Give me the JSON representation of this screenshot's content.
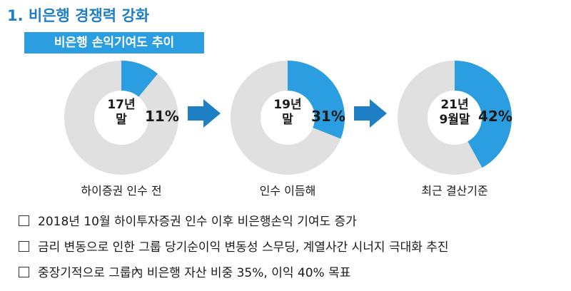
{
  "title": "1. 비은행 경쟁력 강화",
  "subtitle": "비은행 손익기여도 추이",
  "colors": {
    "accent": "#2a9ee0",
    "ring": "#e0e0e0",
    "title": "#1f7fc4"
  },
  "charts": [
    {
      "center_line1": "17년",
      "center_line2": "말",
      "percent": 11,
      "percent_label": "11%",
      "caption": "하이증권 인수 전"
    },
    {
      "center_line1": "19년",
      "center_line2": "말",
      "percent": 31,
      "percent_label": "31%",
      "caption": "인수 이듬해"
    },
    {
      "center_line1": "21년",
      "center_line2": "9월말",
      "percent": 42,
      "percent_label": "42%",
      "caption": "최근 결산기준"
    }
  ],
  "bullets": [
    "2018년 10월 하이투자증권 인수 이후 비은행손익 기여도 증가",
    "금리 변동으로 인한 그룹 당기순이익 변동성 스무딩, 계열사간 시너지 극대화 추진",
    "중장기적으로 그룹內 비은행 자산 비중 35%, 이익 40% 목표"
  ]
}
